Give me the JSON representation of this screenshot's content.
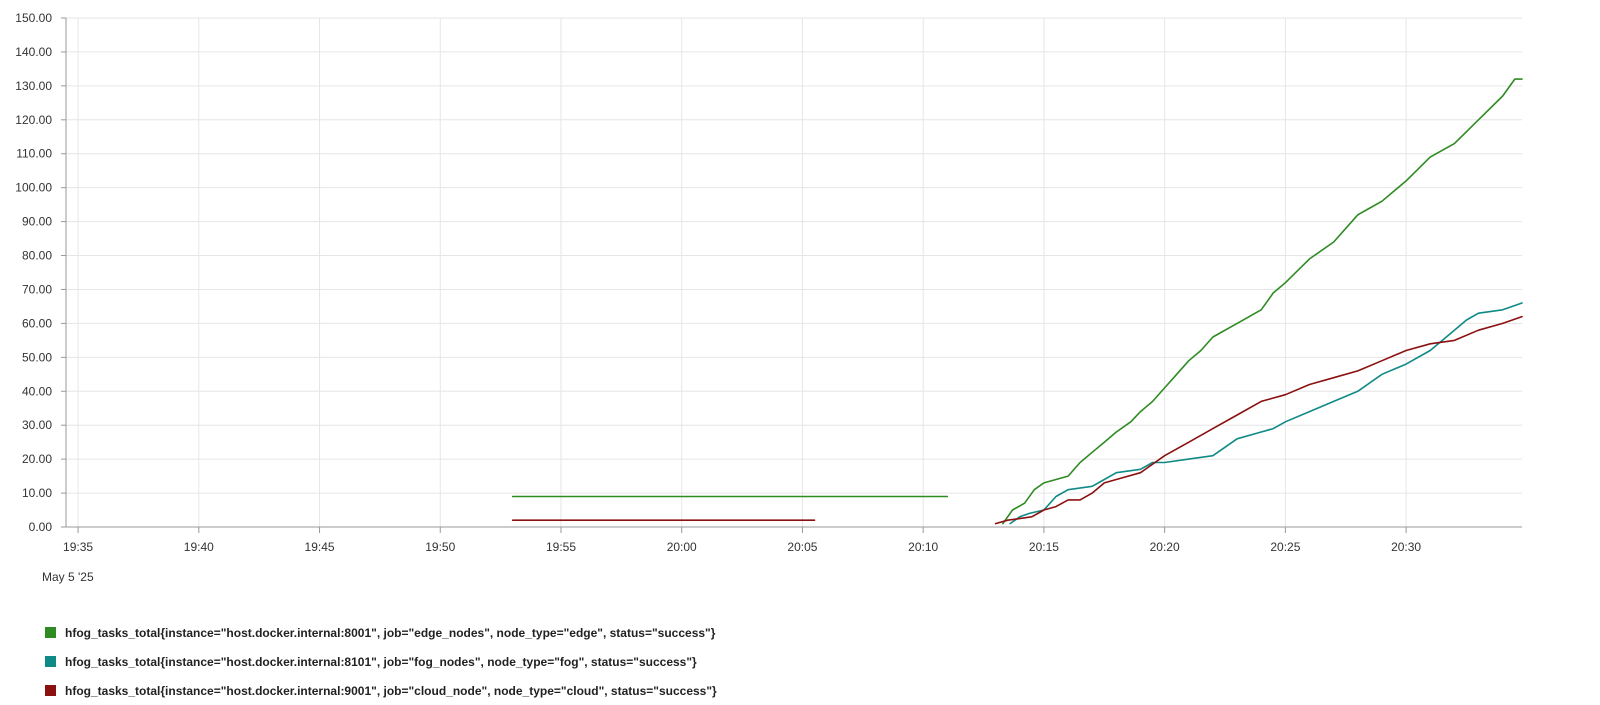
{
  "chart_data": {
    "type": "line",
    "title": "",
    "xlabel": "",
    "ylabel": "",
    "x_domain": [
      "19:34.5",
      "20:34.8"
    ],
    "ylim": [
      0,
      150
    ],
    "y_ticks": [
      "0.00",
      "10.00",
      "20.00",
      "30.00",
      "40.00",
      "50.00",
      "60.00",
      "70.00",
      "80.00",
      "90.00",
      "100.00",
      "110.00",
      "120.00",
      "130.00",
      "140.00",
      "150.00"
    ],
    "x_ticks": [
      "19:35",
      "19:40",
      "19:45",
      "19:50",
      "19:55",
      "20:00",
      "20:05",
      "20:10",
      "20:15",
      "20:20",
      "20:25",
      "20:30"
    ],
    "date_label": "May 5 '25",
    "grid": true,
    "legend_position": "bottom",
    "series": [
      {
        "name": "hfog_tasks_total{instance=\"host.docker.internal:8001\", job=\"edge_nodes\", node_type=\"edge\", status=\"success\"}",
        "color": "#2e8b22",
        "segments": [
          [
            [
              "19:53",
              9
            ],
            [
              "20:11",
              9
            ]
          ],
          [
            [
              "20:13.3",
              1
            ],
            [
              "20:13.7",
              5
            ],
            [
              "20:14.2",
              7
            ],
            [
              "20:14.6",
              11
            ],
            [
              "20:15",
              13
            ],
            [
              "20:15.5",
              14
            ],
            [
              "20:16",
              15
            ],
            [
              "20:16.5",
              19
            ],
            [
              "20:17",
              22
            ],
            [
              "20:17.5",
              25
            ],
            [
              "20:18",
              28
            ],
            [
              "20:18.6",
              31
            ],
            [
              "20:19",
              34
            ],
            [
              "20:19.5",
              37
            ],
            [
              "20:20",
              41
            ],
            [
              "20:20.5",
              45
            ],
            [
              "20:21",
              49
            ],
            [
              "20:21.5",
              52
            ],
            [
              "20:22",
              56
            ],
            [
              "20:23",
              60
            ],
            [
              "20:24",
              64
            ],
            [
              "20:24.5",
              69
            ],
            [
              "20:25",
              72
            ],
            [
              "20:26",
              79
            ],
            [
              "20:27",
              84
            ],
            [
              "20:28",
              92
            ],
            [
              "20:28.5",
              94
            ],
            [
              "20:29",
              96
            ],
            [
              "20:30",
              102
            ],
            [
              "20:31",
              109
            ],
            [
              "20:32",
              113
            ],
            [
              "20:33",
              120
            ],
            [
              "20:34",
              127
            ],
            [
              "20:34.5",
              132
            ],
            [
              "20:34.8",
              132
            ]
          ]
        ]
      },
      {
        "name": "hfog_tasks_total{instance=\"host.docker.internal:8101\", job=\"fog_nodes\", node_type=\"fog\", status=\"success\"}",
        "color": "#0f8a87",
        "segments": [
          [
            [
              "20:13.6",
              1
            ],
            [
              "20:14",
              3
            ],
            [
              "20:14.4",
              4
            ],
            [
              "20:15",
              5
            ],
            [
              "20:15.5",
              9
            ],
            [
              "20:16",
              11
            ],
            [
              "20:17",
              12
            ],
            [
              "20:17.5",
              14
            ],
            [
              "20:18",
              16
            ],
            [
              "20:19",
              17
            ],
            [
              "20:19.5",
              19
            ],
            [
              "20:20",
              19
            ],
            [
              "20:21",
              20
            ],
            [
              "20:22",
              21
            ],
            [
              "20:23",
              26
            ],
            [
              "20:24",
              28
            ],
            [
              "20:24.5",
              29
            ],
            [
              "20:25",
              31
            ],
            [
              "20:26",
              34
            ],
            [
              "20:27",
              37
            ],
            [
              "20:28",
              40
            ],
            [
              "20:29",
              45
            ],
            [
              "20:30",
              48
            ],
            [
              "20:31",
              52
            ],
            [
              "20:32",
              58
            ],
            [
              "20:32.5",
              61
            ],
            [
              "20:33",
              63
            ],
            [
              "20:34",
              64
            ],
            [
              "20:34.8",
              66
            ]
          ]
        ]
      },
      {
        "name": "hfog_tasks_total{instance=\"host.docker.internal:9001\", job=\"cloud_node\", node_type=\"cloud\", status=\"success\"}",
        "color": "#8b1010",
        "segments": [
          [
            [
              "19:53",
              2
            ],
            [
              "20:05.5",
              2
            ]
          ],
          [
            [
              "20:13",
              1
            ],
            [
              "20:13.5",
              2
            ],
            [
              "20:14.5",
              3
            ],
            [
              "20:15",
              5
            ],
            [
              "20:15.5",
              6
            ],
            [
              "20:16",
              8
            ],
            [
              "20:16.5",
              8
            ],
            [
              "20:17",
              10
            ],
            [
              "20:17.5",
              13
            ],
            [
              "20:18",
              14
            ],
            [
              "20:19",
              16
            ],
            [
              "20:20",
              21
            ],
            [
              "20:21",
              25
            ],
            [
              "20:22",
              29
            ],
            [
              "20:23",
              33
            ],
            [
              "20:24",
              37
            ],
            [
              "20:25",
              39
            ],
            [
              "20:26",
              42
            ],
            [
              "20:27",
              44
            ],
            [
              "20:28",
              46
            ],
            [
              "20:29",
              49
            ],
            [
              "20:30",
              52
            ],
            [
              "20:31",
              54
            ],
            [
              "20:32",
              55
            ],
            [
              "20:33",
              58
            ],
            [
              "20:34",
              60
            ],
            [
              "20:34.8",
              62
            ]
          ]
        ]
      }
    ]
  }
}
